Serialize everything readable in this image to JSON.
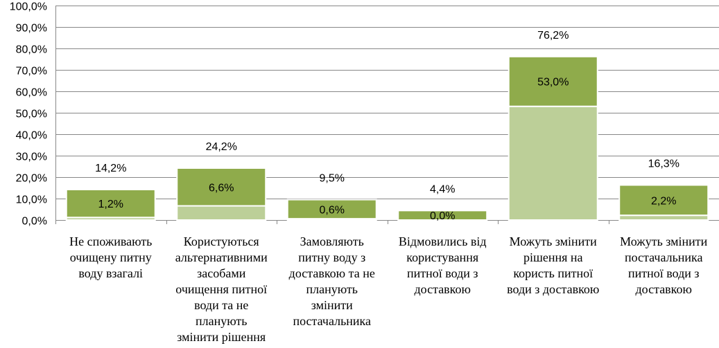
{
  "chart_data": {
    "type": "bar",
    "stacked": true,
    "categories": [
      "Не споживають очищену питну воду взагалі",
      "Користуються альтернативними засобами очищення питної води та не планують змінити рішення",
      "Замовляють питну воду з доставкою та не планують змінити постачальника",
      "Відмовились від користування питної води з доставкою",
      "Можуть змінити рішення на користь питної води з доставкою",
      "Можуть змінити постачальника питної води з доставкою"
    ],
    "category_lines": [
      [
        "Не споживають",
        "очищену питну",
        "воду взагалі"
      ],
      [
        "Користуються",
        "альтернативними",
        "засобами",
        "очищення питної",
        "води та не",
        "планують",
        "змінити рішення"
      ],
      [
        "Замовляють",
        "питну воду з",
        "доставкою та не",
        "планують",
        "змінити",
        "постачальника"
      ],
      [
        "Відмовились від",
        "користування",
        "питної води з",
        "доставкою"
      ],
      [
        "Можуть змінити",
        "рішення на",
        "користь питної",
        "води з доставкою"
      ],
      [
        "Можуть змінити",
        "постачальника",
        "питної води з",
        "доставкою"
      ]
    ],
    "series": [
      {
        "values": [
          1.2,
          6.6,
          0.6,
          0.0,
          53.0,
          2.2
        ],
        "labels": [
          "1,2%",
          "6,6%",
          "0,6%",
          "0,0%",
          "53,0%",
          "2,2%"
        ],
        "color": "#bccf98"
      },
      {
        "values": [
          13.0,
          17.6,
          8.9,
          4.4,
          23.2,
          14.1
        ],
        "color": "#8fab4b"
      }
    ],
    "totals": [
      14.2,
      24.2,
      9.5,
      4.4,
      76.2,
      16.3
    ],
    "total_labels": [
      "14,2%",
      "24,2%",
      "9,5%",
      "4,4%",
      "76,2%",
      "16,3%"
    ],
    "y_ticks": [
      "0,0%",
      "10,0%",
      "20,0%",
      "30,0%",
      "40,0%",
      "50,0%",
      "60,0%",
      "70,0%",
      "80,0%",
      "90,0%",
      "100,0%"
    ],
    "ylim": [
      0,
      100
    ],
    "grid": true,
    "colors": {
      "gridline": "#878787",
      "axis": "#878787"
    }
  }
}
